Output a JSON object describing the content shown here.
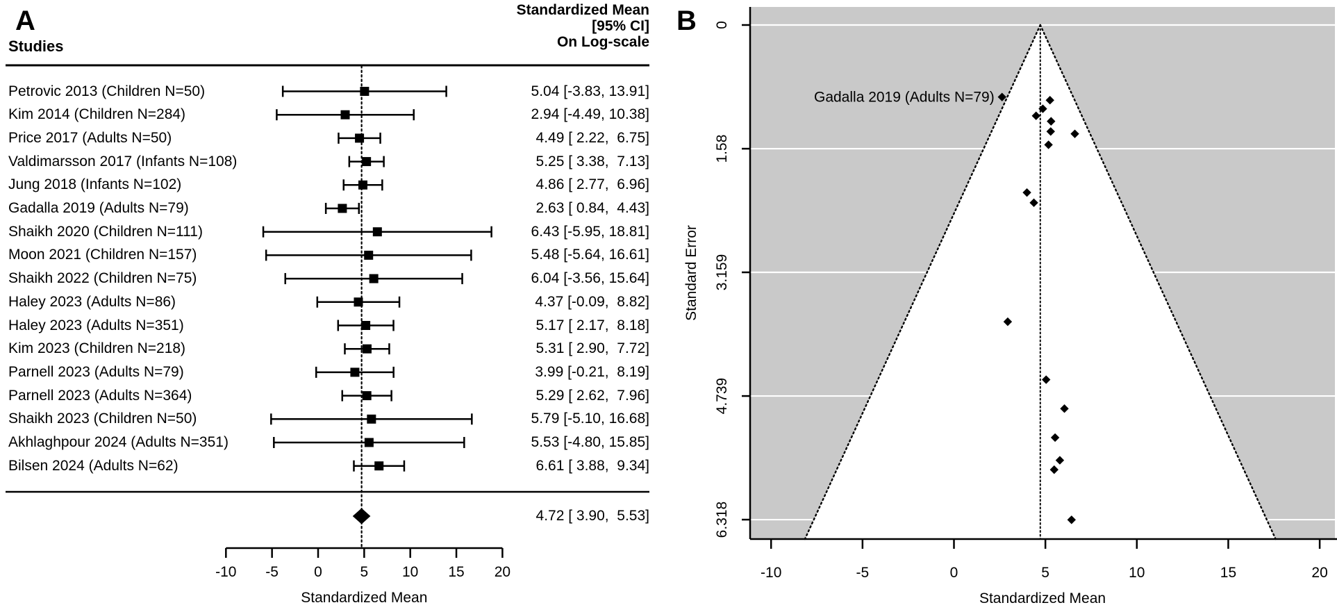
{
  "figure": {
    "panel_a_label": "A",
    "panel_b_label": "B"
  },
  "chart_data": [
    {
      "panel": "A",
      "type": "forest",
      "columns": {
        "left": "Studies",
        "right": [
          "Standardized Mean",
          "[95% CI]",
          "On Log-scale"
        ]
      },
      "xlabel": "Standardized Mean",
      "x_ticks": [
        -10,
        -5,
        0,
        5,
        10,
        15,
        20
      ],
      "xlim": [
        -10,
        20
      ],
      "center_line": 4.72,
      "studies": [
        {
          "label": "Petrovic 2013 (Children N=50)",
          "mean": 5.04,
          "low": -3.83,
          "high": 13.91,
          "ci_text": "5.04 [-3.83, 13.91]"
        },
        {
          "label": "Kim 2014 (Children N=284)",
          "mean": 2.94,
          "low": -4.49,
          "high": 10.38,
          "ci_text": "2.94 [-4.49, 10.38]"
        },
        {
          "label": "Price 2017 (Adults N=50)",
          "mean": 4.49,
          "low": 2.22,
          "high": 6.75,
          "ci_text": "4.49 [ 2.22,  6.75]"
        },
        {
          "label": "Valdimarsson 2017 (Infants N=108)",
          "mean": 5.25,
          "low": 3.38,
          "high": 7.13,
          "ci_text": "5.25 [ 3.38,  7.13]"
        },
        {
          "label": "Jung 2018 (Infants N=102)",
          "mean": 4.86,
          "low": 2.77,
          "high": 6.96,
          "ci_text": "4.86 [ 2.77,  6.96]"
        },
        {
          "label": "Gadalla 2019 (Adults N=79)",
          "mean": 2.63,
          "low": 0.84,
          "high": 4.43,
          "ci_text": "2.63 [ 0.84,  4.43]"
        },
        {
          "label": "Shaikh 2020 (Children N=111)",
          "mean": 6.43,
          "low": -5.95,
          "high": 18.81,
          "ci_text": "6.43 [-5.95, 18.81]"
        },
        {
          "label": "Moon 2021 (Children N=157)",
          "mean": 5.48,
          "low": -5.64,
          "high": 16.61,
          "ci_text": "5.48 [-5.64, 16.61]"
        },
        {
          "label": "Shaikh 2022 (Children N=75)",
          "mean": 6.04,
          "low": -3.56,
          "high": 15.64,
          "ci_text": "6.04 [-3.56, 15.64]"
        },
        {
          "label": "Haley 2023 (Adults N=86)",
          "mean": 4.37,
          "low": -0.09,
          "high": 8.82,
          "ci_text": "4.37 [-0.09,  8.82]"
        },
        {
          "label": "Haley 2023 (Adults N=351)",
          "mean": 5.17,
          "low": 2.17,
          "high": 8.18,
          "ci_text": "5.17 [ 2.17,  8.18]"
        },
        {
          "label": "Kim 2023 (Children N=218)",
          "mean": 5.31,
          "low": 2.9,
          "high": 7.72,
          "ci_text": "5.31 [ 2.90,  7.72]"
        },
        {
          "label": "Parnell 2023 (Adults N=79)",
          "mean": 3.99,
          "low": -0.21,
          "high": 8.19,
          "ci_text": "3.99 [-0.21,  8.19]"
        },
        {
          "label": "Parnell 2023 (Adults N=364)",
          "mean": 5.29,
          "low": 2.62,
          "high": 7.96,
          "ci_text": "5.29 [ 2.62,  7.96]"
        },
        {
          "label": "Shaikh 2023 (Children N=50)",
          "mean": 5.79,
          "low": -5.1,
          "high": 16.68,
          "ci_text": "5.79 [-5.10, 16.68]"
        },
        {
          "label": "Akhlaghpour 2024 (Adults N=351)",
          "mean": 5.53,
          "low": -4.8,
          "high": 15.85,
          "ci_text": "5.53 [-4.80, 15.85]"
        },
        {
          "label": "Bilsen 2024 (Adults N=62)",
          "mean": 6.61,
          "low": 3.88,
          "high": 9.34,
          "ci_text": "6.61 [ 3.88,  9.34]"
        }
      ],
      "summary": {
        "mean": 4.72,
        "low": 3.9,
        "high": 5.53,
        "ci_text": "4.72 [ 3.90,  5.53]"
      }
    },
    {
      "panel": "B",
      "type": "funnel",
      "xlabel": "Standardized Mean",
      "ylabel": "Standard Error",
      "x_ticks": [
        -10,
        -5,
        0,
        5,
        10,
        15,
        20
      ],
      "y_ticks": [
        0,
        1.58,
        3.159,
        4.739,
        6.318
      ],
      "y_tick_labels": [
        "0",
        "1.58",
        "3.159",
        "4.739",
        "6.318"
      ],
      "xlim": [
        -11.1,
        20.7
      ],
      "ylim": [
        0,
        6.57
      ],
      "center": 4.72,
      "ci_multiplier": 1.96,
      "annotation": {
        "label": "Gadalla 2019 (Adults N=79)",
        "point_index": 5
      },
      "colors": {
        "background_band": "#c9c9c9",
        "funnel_region": "#ffffff",
        "marker": "#000000"
      },
      "points": [
        {
          "study": "Petrovic 2013 (Children N=50)",
          "mean": 5.04,
          "se": 4.53
        },
        {
          "study": "Kim 2014 (Children N=284)",
          "mean": 2.94,
          "se": 3.79
        },
        {
          "study": "Price 2017 (Adults N=50)",
          "mean": 4.49,
          "se": 1.16
        },
        {
          "study": "Valdimarsson 2017 (Infants N=108)",
          "mean": 5.25,
          "se": 0.96
        },
        {
          "study": "Jung 2018 (Infants N=102)",
          "mean": 4.86,
          "se": 1.07
        },
        {
          "study": "Gadalla 2019 (Adults N=79)",
          "mean": 2.63,
          "se": 0.92
        },
        {
          "study": "Shaikh 2020 (Children N=111)",
          "mean": 6.43,
          "se": 6.32
        },
        {
          "study": "Moon 2021 (Children N=157)",
          "mean": 5.48,
          "se": 5.68
        },
        {
          "study": "Shaikh 2022 (Children N=75)",
          "mean": 6.04,
          "se": 4.9
        },
        {
          "study": "Haley 2023 (Adults N=86)",
          "mean": 4.37,
          "se": 2.27
        },
        {
          "study": "Haley 2023 (Adults N=351)",
          "mean": 5.17,
          "se": 1.53
        },
        {
          "study": "Kim 2023 (Children N=218)",
          "mean": 5.31,
          "se": 1.23
        },
        {
          "study": "Parnell 2023 (Adults N=79)",
          "mean": 3.99,
          "se": 2.14
        },
        {
          "study": "Parnell 2023 (Adults N=364)",
          "mean": 5.29,
          "se": 1.36
        },
        {
          "study": "Shaikh 2023 (Children N=50)",
          "mean": 5.79,
          "se": 5.56
        },
        {
          "study": "Akhlaghpour 2024 (Adults N=351)",
          "mean": 5.53,
          "se": 5.27
        },
        {
          "study": "Bilsen 2024 (Adults N=62)",
          "mean": 6.61,
          "se": 1.39
        }
      ]
    }
  ]
}
